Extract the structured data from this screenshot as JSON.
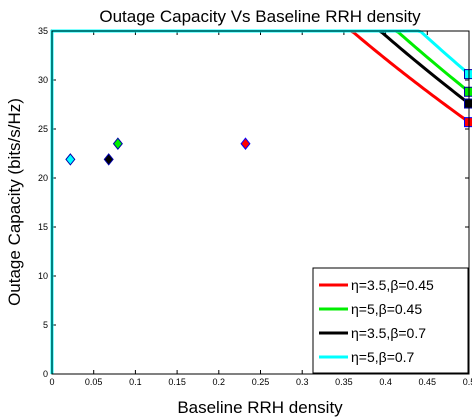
{
  "chart_data": {
    "type": "line",
    "title": "Outage Capacity Vs Baseline RRH density",
    "xlabel": "Baseline RRH density",
    "ylabel": "Outage Capacity (bits/s/Hz)",
    "xlim": [
      0,
      0.5
    ],
    "ylim": [
      0,
      35
    ],
    "xticks": [
      0,
      0.05,
      0.1,
      0.15,
      0.2,
      0.25,
      0.3,
      0.35,
      0.4,
      0.45,
      0.5
    ],
    "xtick_labels": [
      "0",
      "0.05",
      "0.1",
      "0.15",
      "0.2",
      "0.25",
      "0.3",
      "0.35",
      "0.4",
      "0.45",
      "0.5"
    ],
    "yticks": [
      0,
      5,
      10,
      15,
      20,
      25,
      30,
      35
    ],
    "ytick_labels": [
      "0",
      "5",
      "10",
      "15",
      "20",
      "25",
      "30",
      "35"
    ],
    "legend_position": "bottom-right",
    "grid": false,
    "series": [
      {
        "name": "η=3.5,β=0.45",
        "color": "#ff0000",
        "a": 31.3,
        "b": 3.25,
        "diamond": {
          "x": 0.232,
          "y": 23.5
        },
        "square": {
          "x": 0.5,
          "y": 25.7
        }
      },
      {
        "name": "η=5,β=0.45",
        "color": "#00ee00",
        "a": 33.6,
        "b": 3.25,
        "diamond": {
          "x": 0.079,
          "y": 23.5
        },
        "square": {
          "x": 0.5,
          "y": 28.8
        }
      },
      {
        "name": "η=3.5,β=0.7",
        "color": "#000000",
        "a": 32.3,
        "b": 3.25,
        "diamond": {
          "x": 0.068,
          "y": 21.9
        },
        "square": {
          "x": 0.5,
          "y": 27.6
        }
      },
      {
        "name": "η=5,β=0.7",
        "color": "#00ffff",
        "a": 35.0,
        "b": 3.25,
        "diamond": {
          "x": 0.022,
          "y": 21.9
        },
        "square": {
          "x": 0.5,
          "y": 30.6
        }
      }
    ]
  }
}
